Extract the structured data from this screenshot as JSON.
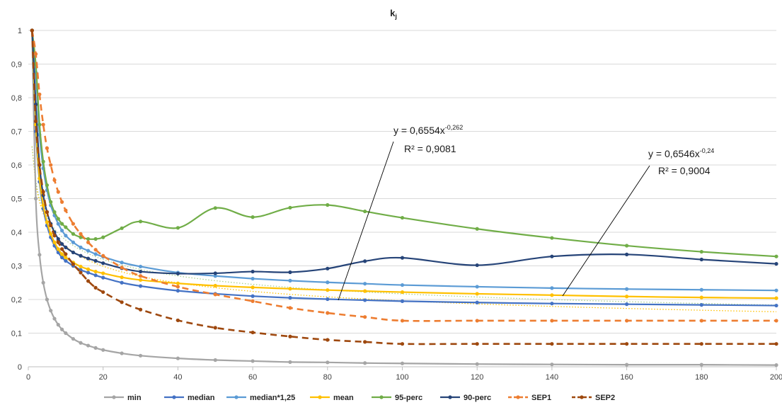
{
  "chart_data": {
    "type": "line",
    "title": "k",
    "title_sub": "j",
    "xlabel": "",
    "ylabel": "",
    "xlim": [
      0,
      200
    ],
    "ylim": [
      0,
      1
    ],
    "x_ticks": [
      0,
      20,
      40,
      60,
      80,
      100,
      120,
      140,
      160,
      180,
      200
    ],
    "y_ticks": [
      0,
      0.1,
      0.2,
      0.3,
      0.4,
      0.5,
      0.6,
      0.7,
      0.8,
      0.9,
      1
    ],
    "x_tick_labels": [
      "0",
      "20",
      "40",
      "60",
      "80",
      "100",
      "120",
      "140",
      "160",
      "180",
      "200"
    ],
    "y_tick_labels": [
      "0",
      "0,1",
      "0,2",
      "0,3",
      "0,4",
      "0,5",
      "0,6",
      "0,7",
      "0,8",
      "0,9",
      "1"
    ],
    "grid": true,
    "legend_position": "bottom",
    "series": [
      {
        "name": "min",
        "color": "#a5a5a5",
        "dash": "solid",
        "x": [
          1,
          2,
          3,
          4,
          5,
          6,
          7,
          8,
          9,
          10,
          12,
          14,
          16,
          18,
          20,
          25,
          30,
          40,
          50,
          60,
          70,
          80,
          90,
          100,
          120,
          140,
          160,
          180,
          200
        ],
        "y": [
          1,
          0.5,
          0.333,
          0.25,
          0.2,
          0.167,
          0.143,
          0.125,
          0.111,
          0.1,
          0.083,
          0.071,
          0.063,
          0.056,
          0.05,
          0.04,
          0.033,
          0.025,
          0.02,
          0.017,
          0.014,
          0.013,
          0.011,
          0.01,
          0.008,
          0.007,
          0.006,
          0.006,
          0.005
        ]
      },
      {
        "name": "median",
        "color": "#4472c4",
        "dash": "solid",
        "x": [
          1,
          2,
          3,
          4,
          5,
          6,
          7,
          8,
          9,
          10,
          12,
          14,
          16,
          18,
          20,
          25,
          30,
          40,
          50,
          60,
          70,
          80,
          90,
          100,
          120,
          140,
          160,
          180,
          200
        ],
        "y": [
          1,
          0.7,
          0.55,
          0.47,
          0.42,
          0.385,
          0.36,
          0.34,
          0.325,
          0.315,
          0.3,
          0.288,
          0.28,
          0.272,
          0.265,
          0.25,
          0.24,
          0.226,
          0.217,
          0.21,
          0.205,
          0.201,
          0.198,
          0.195,
          0.191,
          0.188,
          0.186,
          0.184,
          0.182
        ]
      },
      {
        "name": "median*1,25",
        "color": "#5b9bd5",
        "dash": "solid",
        "x": [
          1,
          2,
          3,
          4,
          5,
          6,
          7,
          8,
          9,
          10,
          12,
          14,
          16,
          18,
          20,
          25,
          30,
          40,
          50,
          60,
          70,
          80,
          90,
          100,
          120,
          140,
          160,
          180,
          200
        ],
        "y": [
          1,
          0.875,
          0.69,
          0.59,
          0.525,
          0.48,
          0.45,
          0.425,
          0.405,
          0.39,
          0.37,
          0.355,
          0.345,
          0.335,
          0.327,
          0.31,
          0.298,
          0.28,
          0.27,
          0.262,
          0.256,
          0.251,
          0.247,
          0.243,
          0.238,
          0.234,
          0.231,
          0.229,
          0.227
        ]
      },
      {
        "name": "mean",
        "color": "#ffc000",
        "dash": "solid",
        "x": [
          1,
          2,
          3,
          4,
          5,
          6,
          7,
          8,
          9,
          10,
          12,
          14,
          16,
          18,
          20,
          25,
          30,
          40,
          50,
          60,
          70,
          80,
          90,
          100,
          120,
          140,
          160,
          180,
          200
        ],
        "y": [
          1,
          0.72,
          0.56,
          0.48,
          0.43,
          0.395,
          0.37,
          0.35,
          0.335,
          0.325,
          0.31,
          0.298,
          0.29,
          0.283,
          0.278,
          0.266,
          0.258,
          0.248,
          0.241,
          0.236,
          0.232,
          0.228,
          0.225,
          0.222,
          0.217,
          0.213,
          0.209,
          0.206,
          0.204
        ]
      },
      {
        "name": "95-perc",
        "color": "#70ad47",
        "dash": "solid",
        "x": [
          1,
          2,
          3,
          4,
          5,
          6,
          7,
          8,
          9,
          10,
          12,
          14,
          16,
          18,
          20,
          25,
          30,
          40,
          50,
          60,
          70,
          80,
          90,
          100,
          120,
          140,
          160,
          180,
          200
        ],
        "y": [
          1,
          0.9,
          0.72,
          0.61,
          0.54,
          0.49,
          0.46,
          0.44,
          0.425,
          0.415,
          0.395,
          0.385,
          0.38,
          0.38,
          0.385,
          0.412,
          0.432,
          0.413,
          0.472,
          0.445,
          0.473,
          0.481,
          0.462,
          0.443,
          0.41,
          0.383,
          0.36,
          0.342,
          0.328
        ]
      },
      {
        "name": "90-perc",
        "color": "#264478",
        "dash": "solid",
        "x": [
          1,
          2,
          3,
          4,
          5,
          6,
          7,
          8,
          9,
          10,
          12,
          14,
          16,
          18,
          20,
          25,
          30,
          40,
          50,
          60,
          70,
          80,
          90,
          100,
          120,
          140,
          160,
          180,
          200
        ],
        "y": [
          1,
          0.78,
          0.6,
          0.51,
          0.46,
          0.425,
          0.4,
          0.38,
          0.365,
          0.355,
          0.34,
          0.33,
          0.322,
          0.315,
          0.308,
          0.293,
          0.283,
          0.277,
          0.278,
          0.283,
          0.281,
          0.292,
          0.314,
          0.324,
          0.302,
          0.328,
          0.334,
          0.319,
          0.306
        ]
      },
      {
        "name": "SEP1",
        "color": "#ed7d31",
        "dash": "dashed",
        "x": [
          1,
          2,
          3,
          4,
          5,
          6,
          7,
          8,
          9,
          10,
          12,
          14,
          16,
          18,
          20,
          25,
          30,
          40,
          50,
          60,
          70,
          80,
          90,
          100,
          120,
          140,
          160,
          180,
          200
        ],
        "y": [
          1,
          0.93,
          0.81,
          0.72,
          0.65,
          0.6,
          0.555,
          0.52,
          0.49,
          0.465,
          0.425,
          0.395,
          0.37,
          0.348,
          0.33,
          0.295,
          0.27,
          0.238,
          0.215,
          0.195,
          0.175,
          0.16,
          0.148,
          0.137,
          0.137,
          0.137,
          0.137,
          0.137,
          0.137
        ]
      },
      {
        "name": "SEP2",
        "color": "#9e480e",
        "dash": "dashed",
        "x": [
          1,
          2,
          3,
          4,
          5,
          6,
          7,
          8,
          9,
          10,
          12,
          14,
          16,
          18,
          20,
          25,
          30,
          40,
          50,
          60,
          70,
          80,
          90,
          100,
          120,
          140,
          160,
          180,
          200
        ],
        "y": [
          1,
          0.73,
          0.6,
          0.52,
          0.46,
          0.42,
          0.39,
          0.37,
          0.35,
          0.335,
          0.305,
          0.28,
          0.255,
          0.235,
          0.222,
          0.192,
          0.17,
          0.138,
          0.116,
          0.102,
          0.09,
          0.08,
          0.074,
          0.068,
          0.068,
          0.068,
          0.068,
          0.068,
          0.068
        ]
      }
    ],
    "trendlines": [
      {
        "color": "#ffc000",
        "coef": 0.6554,
        "exp": -0.262,
        "equation_prefix": "y = 0,6554x",
        "equation_exp": "-0,262",
        "r2": "R² = 0,9081"
      },
      {
        "color": "#a9d18e",
        "coef": 0.6546,
        "exp": -0.24,
        "equation_prefix": "y = 0,6546x",
        "equation_exp": "-0,24",
        "r2": "R² = 0,9004"
      }
    ]
  }
}
